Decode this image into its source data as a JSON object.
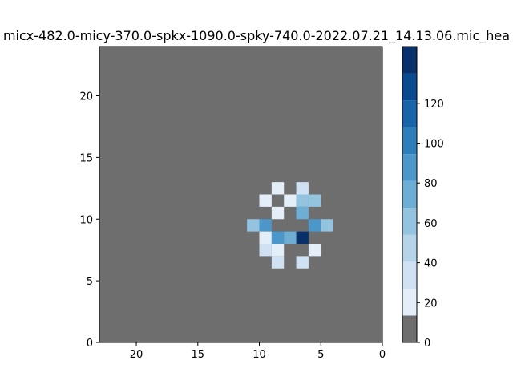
{
  "chart_data": {
    "type": "heatmap",
    "title": "micx-482.0-micy-370.0-spkx-1090.0-spky-740.0-2022.07.21_14.13.06.mic_hea",
    "xlim": [
      23,
      0
    ],
    "ylim": [
      0,
      24
    ],
    "x_ticks": [
      20,
      15,
      10,
      5,
      0
    ],
    "y_ticks": [
      0,
      5,
      10,
      15,
      20
    ],
    "colorbar": {
      "min": 0,
      "max": 135,
      "ticks": [
        0,
        20,
        40,
        60,
        80,
        100,
        120
      ],
      "bins": [
        {
          "from": 0,
          "to": 13.5,
          "color": "#6e6e6e"
        },
        {
          "from": 13.5,
          "to": 27,
          "color": "#e3eef9"
        },
        {
          "from": 27,
          "to": 40.5,
          "color": "#cfe1f2"
        },
        {
          "from": 40.5,
          "to": 54,
          "color": "#b5d4e9"
        },
        {
          "from": 54,
          "to": 67.5,
          "color": "#93c3df"
        },
        {
          "from": 67.5,
          "to": 81,
          "color": "#6daed5"
        },
        {
          "from": 81,
          "to": 94.5,
          "color": "#4b97c9"
        },
        {
          "from": 94.5,
          "to": 108,
          "color": "#2f7ebc"
        },
        {
          "from": 108,
          "to": 121.5,
          "color": "#1864aa"
        },
        {
          "from": 121.5,
          "to": 135,
          "color": "#0a4a90"
        },
        {
          "from": 135,
          "to": 148.5,
          "color": "#08306b"
        }
      ]
    },
    "background_value": 0,
    "cells": [
      {
        "x": 8,
        "y": 12,
        "value": 20
      },
      {
        "x": 6,
        "y": 12,
        "value": 35
      },
      {
        "x": 9,
        "y": 11,
        "value": 20
      },
      {
        "x": 7,
        "y": 11,
        "value": 20
      },
      {
        "x": 6,
        "y": 11,
        "value": 60
      },
      {
        "x": 5,
        "y": 11,
        "value": 60
      },
      {
        "x": 8,
        "y": 10,
        "value": 20
      },
      {
        "x": 6,
        "y": 10,
        "value": 75
      },
      {
        "x": 10,
        "y": 9,
        "value": 65
      },
      {
        "x": 9,
        "y": 9,
        "value": 85
      },
      {
        "x": 5,
        "y": 9,
        "value": 85
      },
      {
        "x": 4,
        "y": 9,
        "value": 65
      },
      {
        "x": 9,
        "y": 8,
        "value": 20
      },
      {
        "x": 8,
        "y": 8,
        "value": 90
      },
      {
        "x": 7,
        "y": 8,
        "value": 70
      },
      {
        "x": 6,
        "y": 8,
        "value": 135
      },
      {
        "x": 9,
        "y": 7,
        "value": 35
      },
      {
        "x": 8,
        "y": 7,
        "value": 20
      },
      {
        "x": 5,
        "y": 7,
        "value": 25
      },
      {
        "x": 8,
        "y": 6,
        "value": 35
      },
      {
        "x": 6,
        "y": 6,
        "value": 35
      }
    ]
  }
}
